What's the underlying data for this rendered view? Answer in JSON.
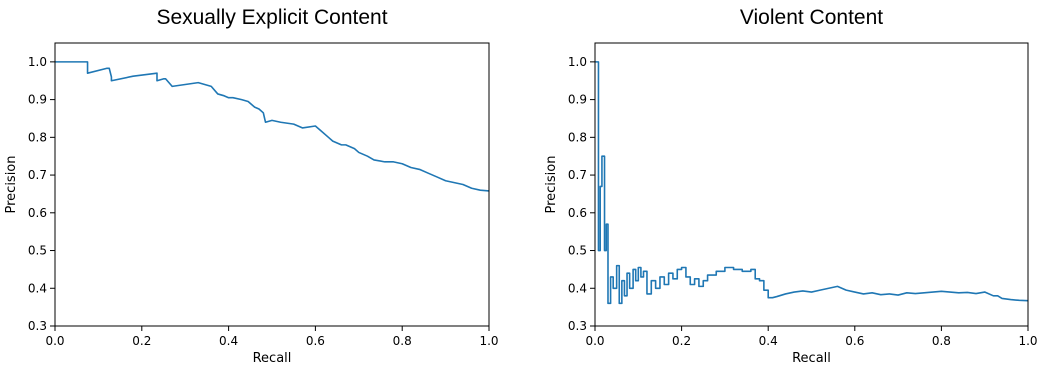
{
  "chart_data": [
    {
      "type": "line",
      "title": "Sexually Explicit Content",
      "xlabel": "Recall",
      "ylabel": "Precision",
      "xlim": [
        0.0,
        1.0
      ],
      "ylim": [
        0.3,
        1.05
      ],
      "xticks": [
        "0.0",
        "0.2",
        "0.4",
        "0.6",
        "0.8",
        "1.0"
      ],
      "yticks": [
        "0.3",
        "0.4",
        "0.5",
        "0.6",
        "0.7",
        "0.8",
        "0.9",
        "1.0"
      ],
      "grid": false,
      "color": "#1f77b4",
      "series": [
        {
          "x": [
            0.0,
            0.075,
            0.075,
            0.12,
            0.125,
            0.13,
            0.13,
            0.18,
            0.235,
            0.235,
            0.25,
            0.255,
            0.27,
            0.3,
            0.33,
            0.345,
            0.36,
            0.375,
            0.39,
            0.4,
            0.41,
            0.43,
            0.445,
            0.46,
            0.47,
            0.48,
            0.485,
            0.5,
            0.52,
            0.55,
            0.57,
            0.6,
            0.61,
            0.63,
            0.64,
            0.66,
            0.67,
            0.69,
            0.7,
            0.72,
            0.735,
            0.76,
            0.78,
            0.8,
            0.82,
            0.84,
            0.86,
            0.88,
            0.9,
            0.92,
            0.94,
            0.96,
            0.98,
            1.0
          ],
          "y": [
            1.0,
            1.0,
            0.97,
            0.983,
            0.983,
            0.96,
            0.95,
            0.962,
            0.97,
            0.95,
            0.955,
            0.955,
            0.935,
            0.94,
            0.945,
            0.94,
            0.935,
            0.915,
            0.91,
            0.905,
            0.905,
            0.9,
            0.895,
            0.88,
            0.875,
            0.865,
            0.84,
            0.845,
            0.84,
            0.835,
            0.825,
            0.83,
            0.82,
            0.8,
            0.79,
            0.78,
            0.78,
            0.77,
            0.76,
            0.75,
            0.74,
            0.735,
            0.735,
            0.73,
            0.72,
            0.715,
            0.705,
            0.695,
            0.685,
            0.68,
            0.675,
            0.665,
            0.66,
            0.658
          ]
        }
      ]
    },
    {
      "type": "line",
      "title": "Violent Content",
      "xlabel": "Recall",
      "ylabel": "Precision",
      "xlim": [
        0.0,
        1.0
      ],
      "ylim": [
        0.3,
        1.05
      ],
      "xticks": [
        "0.0",
        "0.2",
        "0.4",
        "0.6",
        "0.8",
        "1.0"
      ],
      "yticks": [
        "0.3",
        "0.4",
        "0.5",
        "0.6",
        "0.7",
        "0.8",
        "0.9",
        "1.0"
      ],
      "grid": false,
      "color": "#1f77b4",
      "series": [
        {
          "x": [
            0.0,
            0.008,
            0.008,
            0.012,
            0.012,
            0.016,
            0.016,
            0.022,
            0.022,
            0.026,
            0.026,
            0.03,
            0.03,
            0.036,
            0.036,
            0.042,
            0.042,
            0.05,
            0.05,
            0.056,
            0.056,
            0.062,
            0.062,
            0.068,
            0.068,
            0.074,
            0.074,
            0.08,
            0.08,
            0.088,
            0.088,
            0.094,
            0.094,
            0.1,
            0.1,
            0.106,
            0.106,
            0.112,
            0.112,
            0.12,
            0.12,
            0.13,
            0.13,
            0.14,
            0.14,
            0.15,
            0.15,
            0.16,
            0.16,
            0.17,
            0.17,
            0.18,
            0.18,
            0.19,
            0.19,
            0.2,
            0.2,
            0.21,
            0.21,
            0.22,
            0.22,
            0.23,
            0.23,
            0.24,
            0.24,
            0.25,
            0.25,
            0.26,
            0.26,
            0.28,
            0.28,
            0.3,
            0.3,
            0.32,
            0.32,
            0.34,
            0.34,
            0.36,
            0.36,
            0.37,
            0.37,
            0.38,
            0.38,
            0.39,
            0.39,
            0.4,
            0.4,
            0.41,
            0.42,
            0.44,
            0.46,
            0.48,
            0.5,
            0.52,
            0.54,
            0.56,
            0.58,
            0.6,
            0.62,
            0.64,
            0.66,
            0.68,
            0.7,
            0.72,
            0.74,
            0.76,
            0.78,
            0.8,
            0.82,
            0.84,
            0.86,
            0.88,
            0.9,
            0.92,
            0.93,
            0.94,
            0.96,
            0.98,
            1.0
          ],
          "y": [
            1.0,
            1.0,
            0.5,
            0.5,
            0.67,
            0.67,
            0.75,
            0.75,
            0.5,
            0.5,
            0.57,
            0.57,
            0.36,
            0.36,
            0.43,
            0.43,
            0.4,
            0.4,
            0.46,
            0.46,
            0.36,
            0.36,
            0.42,
            0.42,
            0.38,
            0.38,
            0.44,
            0.44,
            0.4,
            0.4,
            0.45,
            0.45,
            0.42,
            0.42,
            0.455,
            0.455,
            0.43,
            0.43,
            0.445,
            0.445,
            0.385,
            0.385,
            0.42,
            0.42,
            0.4,
            0.4,
            0.43,
            0.43,
            0.41,
            0.41,
            0.44,
            0.44,
            0.425,
            0.425,
            0.45,
            0.45,
            0.455,
            0.455,
            0.43,
            0.43,
            0.41,
            0.41,
            0.425,
            0.425,
            0.405,
            0.405,
            0.42,
            0.42,
            0.435,
            0.435,
            0.445,
            0.445,
            0.455,
            0.455,
            0.45,
            0.45,
            0.445,
            0.445,
            0.45,
            0.45,
            0.425,
            0.425,
            0.42,
            0.42,
            0.395,
            0.395,
            0.375,
            0.375,
            0.378,
            0.385,
            0.39,
            0.393,
            0.39,
            0.395,
            0.4,
            0.405,
            0.395,
            0.39,
            0.385,
            0.388,
            0.383,
            0.385,
            0.382,
            0.388,
            0.386,
            0.388,
            0.39,
            0.392,
            0.39,
            0.388,
            0.389,
            0.386,
            0.39,
            0.38,
            0.38,
            0.373,
            0.37,
            0.368,
            0.367
          ]
        }
      ]
    }
  ]
}
